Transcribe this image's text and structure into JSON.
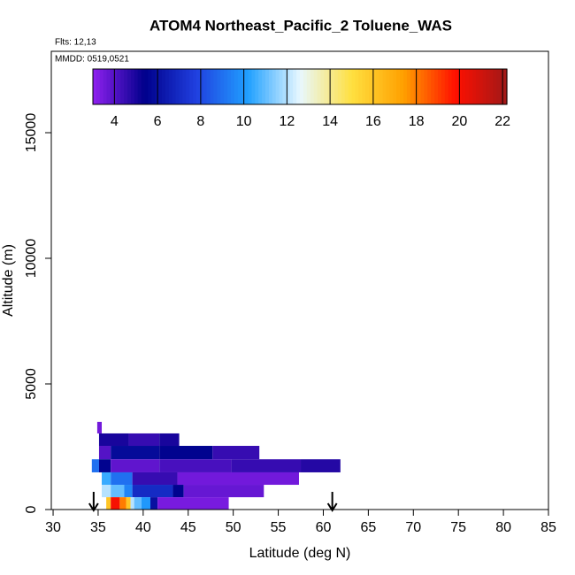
{
  "chart_data": {
    "type": "curtain",
    "title": "ATOM4 Northeast_Pacific_2 Toluene_WAS",
    "flights": "Flts: 12,13",
    "dates": "MMDD: 0519,0521",
    "xlabel": "Latitude (deg N)",
    "ylabel": "Altitude (m)",
    "xlim": [
      29.8,
      85
    ],
    "xticks": [
      30,
      35,
      40,
      45,
      50,
      55,
      60,
      65,
      70,
      75,
      80,
      85
    ],
    "ylim": [
      0,
      18240
    ],
    "yticks": [
      0,
      5000,
      10000,
      15000
    ],
    "clim": [
      3,
      22.2
    ],
    "cticks": [
      4,
      6,
      8,
      10,
      12,
      14,
      16,
      18,
      20,
      22
    ],
    "colormap": [
      "#9020f0",
      "#00008b",
      "#2040e0",
      "#20a0ff",
      "#e8f8ff",
      "#ffe040",
      "#ffa000",
      "#ff1000",
      "#a01818"
    ],
    "arrows": [
      34.5,
      61.0
    ],
    "cells": [
      {
        "lat": [
          34.9,
          35.4
        ],
        "alt": [
          3030,
          3490
        ],
        "value": 3.5
      },
      {
        "lat": [
          35.1,
          38.4
        ],
        "alt": [
          2535,
          3030
        ],
        "value": 5.0
      },
      {
        "lat": [
          38.4,
          41.8
        ],
        "alt": [
          2535,
          3030
        ],
        "value": 4.5
      },
      {
        "lat": [
          41.8,
          44.0
        ],
        "alt": [
          2535,
          3030
        ],
        "value": 5.0
      },
      {
        "lat": [
          35.1,
          36.4
        ],
        "alt": [
          2000,
          2535
        ],
        "value": 4.0
      },
      {
        "lat": [
          36.4,
          41.8
        ],
        "alt": [
          2000,
          2535
        ],
        "value": 5.8
      },
      {
        "lat": [
          41.8,
          47.7
        ],
        "alt": [
          2000,
          2535
        ],
        "value": 5.5
      },
      {
        "lat": [
          47.7,
          52.9
        ],
        "alt": [
          2000,
          2535
        ],
        "value": 4.5
      },
      {
        "lat": [
          34.3,
          35.1
        ],
        "alt": [
          1480,
          2000
        ],
        "value": 9.0
      },
      {
        "lat": [
          35.1,
          36.4
        ],
        "alt": [
          1480,
          2000
        ],
        "value": 5.5
      },
      {
        "lat": [
          36.4,
          41.8
        ],
        "alt": [
          1480,
          2000
        ],
        "value": 3.8
      },
      {
        "lat": [
          41.8,
          49.8
        ],
        "alt": [
          1480,
          2000
        ],
        "value": 4.2
      },
      {
        "lat": [
          49.8,
          57.5
        ],
        "alt": [
          1480,
          2000
        ],
        "value": 4.5
      },
      {
        "lat": [
          57.5,
          61.9
        ],
        "alt": [
          1480,
          2000
        ],
        "value": 4.8
      },
      {
        "lat": [
          35.4,
          36.4
        ],
        "alt": [
          985,
          1480
        ],
        "value": 10.5
      },
      {
        "lat": [
          36.4,
          38.8
        ],
        "alt": [
          985,
          1480
        ],
        "value": 9.0
      },
      {
        "lat": [
          38.8,
          43.8
        ],
        "alt": [
          985,
          1480
        ],
        "value": 4.5
      },
      {
        "lat": [
          43.8,
          57.3
        ],
        "alt": [
          985,
          1480
        ],
        "value": 3.5
      },
      {
        "lat": [
          35.4,
          36.4
        ],
        "alt": [
          490,
          985
        ],
        "value": 12.0
      },
      {
        "lat": [
          36.4,
          37.9
        ],
        "alt": [
          490,
          985
        ],
        "value": 11.0
      },
      {
        "lat": [
          37.9,
          38.8
        ],
        "alt": [
          490,
          985
        ],
        "value": 9.5
      },
      {
        "lat": [
          38.8,
          43.3
        ],
        "alt": [
          490,
          985
        ],
        "value": 7.0
      },
      {
        "lat": [
          43.3,
          44.5
        ],
        "alt": [
          490,
          985
        ],
        "value": 5.5
      },
      {
        "lat": [
          44.5,
          53.4
        ],
        "alt": [
          490,
          985
        ],
        "value": 3.7
      },
      {
        "lat": [
          35.9,
          36.4
        ],
        "alt": [
          0,
          490
        ],
        "value": 16.0
      },
      {
        "lat": [
          36.4,
          37.4
        ],
        "alt": [
          0,
          490
        ],
        "value": 20.0
      },
      {
        "lat": [
          37.4,
          38.1
        ],
        "alt": [
          0,
          490
        ],
        "value": 18.0
      },
      {
        "lat": [
          38.1,
          38.6
        ],
        "alt": [
          0,
          490
        ],
        "value": 16.0
      },
      {
        "lat": [
          38.6,
          39.0
        ],
        "alt": [
          0,
          490
        ],
        "value": 12.0
      },
      {
        "lat": [
          39.0,
          39.8
        ],
        "alt": [
          0,
          490
        ],
        "value": 11.0
      },
      {
        "lat": [
          39.8,
          40.8
        ],
        "alt": [
          0,
          490
        ],
        "value": 10.0
      },
      {
        "lat": [
          40.8,
          41.6
        ],
        "alt": [
          0,
          490
        ],
        "value": 6.0
      },
      {
        "lat": [
          41.6,
          49.5
        ],
        "alt": [
          0,
          490
        ],
        "value": 3.4
      }
    ]
  }
}
